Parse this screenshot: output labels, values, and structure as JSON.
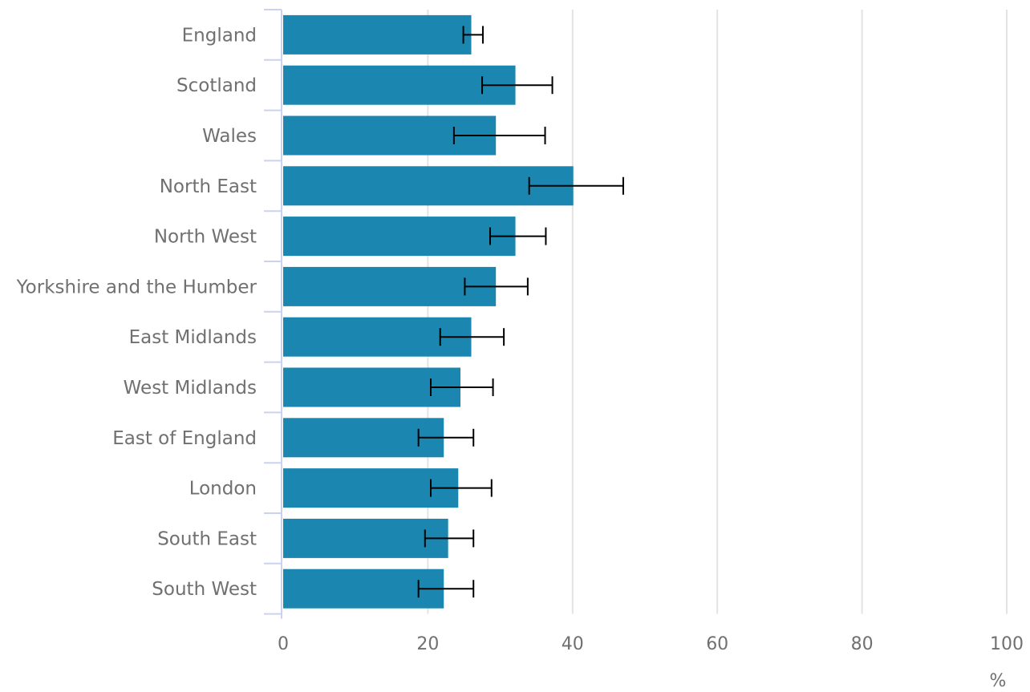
{
  "chart_data": {
    "type": "bar",
    "orientation": "horizontal",
    "categories": [
      "England",
      "Scotland",
      "Wales",
      "North East",
      "North West",
      "Yorkshire and the Humber",
      "East Midlands",
      "West Midlands",
      "East of England",
      "London",
      "South East",
      "South West"
    ],
    "values": [
      26.0,
      32.1,
      29.4,
      40.1,
      32.1,
      29.4,
      26.0,
      24.5,
      22.2,
      24.2,
      22.8,
      22.2
    ],
    "error_low": [
      24.9,
      27.5,
      23.6,
      34.0,
      28.6,
      25.1,
      21.7,
      20.4,
      18.7,
      20.4,
      19.6,
      18.7
    ],
    "error_high": [
      27.6,
      37.2,
      36.2,
      47.0,
      36.3,
      33.8,
      30.5,
      29.0,
      26.3,
      28.8,
      26.3,
      26.3
    ],
    "xlim": [
      0,
      100
    ],
    "xticks": [
      "0",
      "20",
      "40",
      "60",
      "80",
      "100"
    ],
    "xunit": "%",
    "grid": "vertical",
    "bar_color": "#1b86b0",
    "error_bar_color": "#000000",
    "gridline_color": "#e3e3e3",
    "axis_color": "#c9d3ee",
    "text_color": "#707070"
  }
}
